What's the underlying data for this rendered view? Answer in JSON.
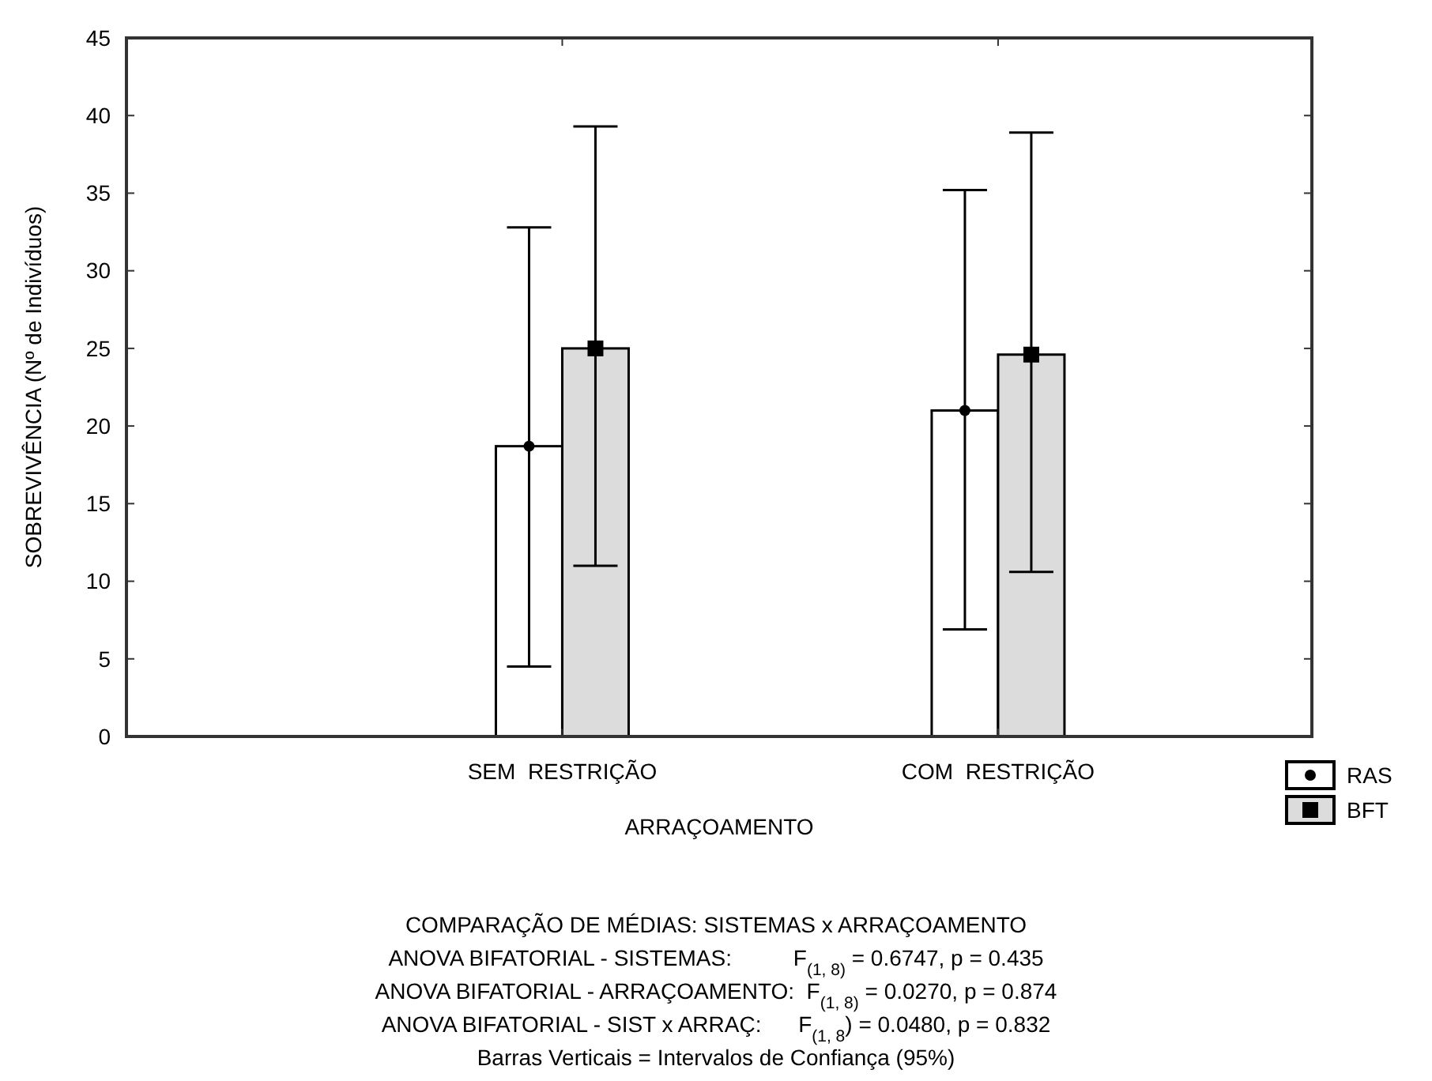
{
  "chart_data": {
    "type": "bar",
    "xlabel": "ARRAÇOAMENTO",
    "ylabel": "SOBREVIVÊNCIA (Nº de Indivíduos)",
    "categories": [
      "SEM  RESTRIÇÃO",
      "COM  RESTRIÇÃO"
    ],
    "series": [
      {
        "name": "RAS",
        "color": "#ffffff",
        "values": [
          18.7,
          21.0
        ],
        "errors": [
          [
            4.5,
            32.8
          ],
          [
            6.9,
            35.2
          ]
        ],
        "marker": "circle"
      },
      {
        "name": "BFT",
        "color": "#dcdcdc",
        "values": [
          25.0,
          24.6
        ],
        "errors": [
          [
            11.0,
            39.3
          ],
          [
            10.6,
            38.9
          ]
        ],
        "marker": "square"
      },
      {
        "type": "scatter",
        "x": [
          "SEM  RESTRIÇÃO",
          "COM  RESTRIÇÃO"
        ],
        "color": "#000000",
        "values": [
          18.7,
          21.0
        ],
        "marker": "circle"
      },
      {
        "type": "scatter",
        "x": [
          "SEM  RESTRIÇÃO",
          "COM  RESTRIÇÃO"
        ],
        "color": "#000000",
        "values": [
          25.0,
          24.6
        ],
        "marker": "square"
      }
    ],
    "ylim": [
      0,
      45
    ],
    "yticks": [
      0,
      5,
      10,
      15,
      20,
      25,
      30,
      35,
      40,
      45
    ],
    "grid": false,
    "legend": "bottom right",
    "annotations": [
      "COMPARAÇÃO DE MÉDIAS: SISTEMAS x ARRAÇOAMENTO",
      "ANOVA BIFATORIAL - SISTEMAS:          F$_{(1, 8)}$ = 0.6747, p = 0.435",
      "ANOVA BIFATORIAL - ARRAÇOAMENTO:  F$_{(1, 8)}$ = 0.0270, p = 0.874",
      "ANOVA BIFATORIAL - SIST x ARRAÇ:      F$_{(1, 8}$) = 0.0480, p = 0.832",
      "Barras Verticais = Intervalos de Confiança (95%)"
    ]
  }
}
